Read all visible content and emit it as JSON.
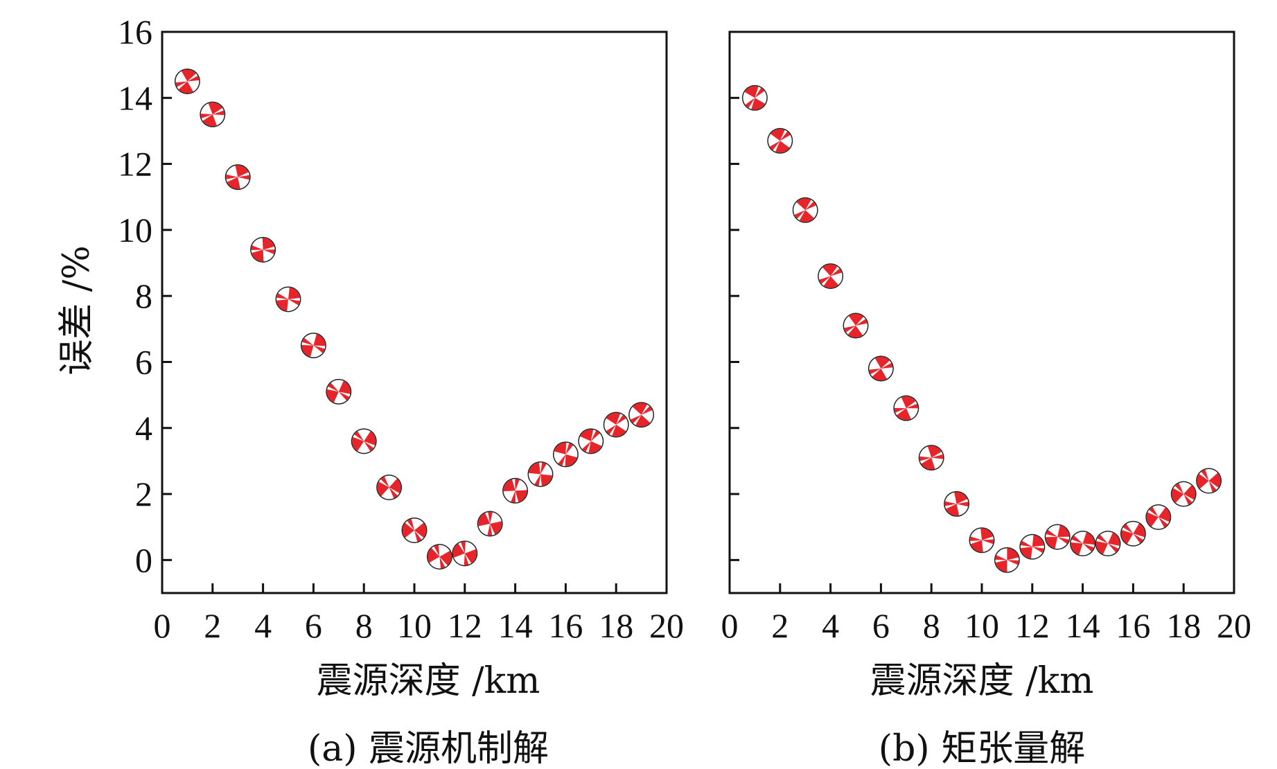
{
  "colors": {
    "beachball_fill": "#e8242b",
    "beachball_light": "#ffffff",
    "axis": "#111111"
  },
  "shared": {
    "ylabel": "误差 /%",
    "xlabel": "震源深度 /km"
  },
  "chart_data": [
    {
      "type": "scatter",
      "marker": "beachball",
      "caption": "(a) 震源机制解",
      "xlabel": "震源深度 /km",
      "ylabel": "误差 /%",
      "xlim": [
        0,
        20
      ],
      "ylim": [
        -1,
        16
      ],
      "xticks": [
        0,
        2,
        4,
        6,
        8,
        10,
        12,
        14,
        16,
        18,
        20
      ],
      "yticks": [
        0,
        2,
        4,
        6,
        8,
        10,
        12,
        14,
        16
      ],
      "grid": false,
      "points": [
        {
          "x": 1,
          "y": 14.5
        },
        {
          "x": 2,
          "y": 13.5
        },
        {
          "x": 3,
          "y": 11.6
        },
        {
          "x": 4,
          "y": 9.4
        },
        {
          "x": 5,
          "y": 7.9
        },
        {
          "x": 6,
          "y": 6.5
        },
        {
          "x": 7,
          "y": 5.1
        },
        {
          "x": 8,
          "y": 3.6
        },
        {
          "x": 9,
          "y": 2.2
        },
        {
          "x": 10,
          "y": 0.9
        },
        {
          "x": 11,
          "y": 0.1
        },
        {
          "x": 12,
          "y": 0.2
        },
        {
          "x": 13,
          "y": 1.1
        },
        {
          "x": 14,
          "y": 2.1
        },
        {
          "x": 15,
          "y": 2.6
        },
        {
          "x": 16,
          "y": 3.2
        },
        {
          "x": 17,
          "y": 3.6
        },
        {
          "x": 18,
          "y": 4.1
        },
        {
          "x": 19,
          "y": 4.4
        }
      ]
    },
    {
      "type": "scatter",
      "marker": "beachball",
      "caption": "(b) 矩张量解",
      "xlabel": "震源深度 /km",
      "ylabel": "",
      "xlim": [
        0,
        20
      ],
      "ylim": [
        -1,
        16
      ],
      "xticks": [
        0,
        2,
        4,
        6,
        8,
        10,
        12,
        14,
        16,
        18,
        20
      ],
      "yticks": [],
      "grid": false,
      "points": [
        {
          "x": 1,
          "y": 14.0
        },
        {
          "x": 2,
          "y": 12.7
        },
        {
          "x": 3,
          "y": 10.6
        },
        {
          "x": 4,
          "y": 8.6
        },
        {
          "x": 5,
          "y": 7.1
        },
        {
          "x": 6,
          "y": 5.8
        },
        {
          "x": 7,
          "y": 4.6
        },
        {
          "x": 8,
          "y": 3.1
        },
        {
          "x": 9,
          "y": 1.7
        },
        {
          "x": 10,
          "y": 0.6
        },
        {
          "x": 11,
          "y": 0.0
        },
        {
          "x": 12,
          "y": 0.4
        },
        {
          "x": 13,
          "y": 0.7
        },
        {
          "x": 14,
          "y": 0.5
        },
        {
          "x": 15,
          "y": 0.5
        },
        {
          "x": 16,
          "y": 0.8
        },
        {
          "x": 17,
          "y": 1.3
        },
        {
          "x": 18,
          "y": 2.0
        },
        {
          "x": 19,
          "y": 2.4
        }
      ]
    }
  ]
}
